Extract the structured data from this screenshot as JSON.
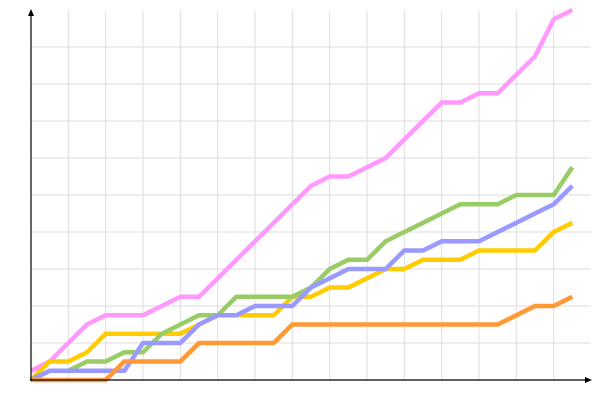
{
  "chart_data": {
    "type": "line",
    "title": "",
    "xlabel": "",
    "ylabel": "",
    "xlim": [
      0,
      15
    ],
    "ylim": [
      0,
      10
    ],
    "grid": true,
    "legend": "none",
    "x": [
      0,
      0.5,
      1,
      1.5,
      2,
      2.5,
      3,
      3.5,
      4,
      4.5,
      5,
      5.5,
      6,
      6.5,
      7,
      7.5,
      8,
      8.5,
      9,
      9.5,
      10,
      10.5,
      11,
      11.5,
      12,
      12.5,
      13,
      13.5,
      14,
      14.5
    ],
    "series": [
      {
        "color": "#ff99ff",
        "values": [
          0.25,
          0.5,
          1.0,
          1.5,
          1.75,
          1.75,
          1.75,
          2.0,
          2.25,
          2.25,
          2.75,
          3.25,
          3.75,
          4.25,
          4.75,
          5.25,
          5.5,
          5.5,
          5.75,
          6.0,
          6.5,
          7.0,
          7.5,
          7.5,
          7.75,
          7.75,
          8.25,
          8.75,
          9.75,
          10.0
        ]
      },
      {
        "color": "#ffcc00",
        "values": [
          0,
          0.5,
          0.5,
          0.75,
          1.25,
          1.25,
          1.25,
          1.25,
          1.25,
          1.5,
          1.75,
          1.75,
          1.75,
          1.75,
          2.25,
          2.25,
          2.5,
          2.5,
          2.75,
          3.0,
          3.0,
          3.25,
          3.25,
          3.25,
          3.5,
          3.5,
          3.5,
          3.5,
          4.0,
          4.25
        ]
      },
      {
        "color": "#99cc66",
        "values": [
          0,
          0.25,
          0.25,
          0.5,
          0.5,
          0.75,
          0.75,
          1.25,
          1.5,
          1.75,
          1.75,
          2.25,
          2.25,
          2.25,
          2.25,
          2.5,
          3.0,
          3.25,
          3.25,
          3.75,
          4.0,
          4.25,
          4.5,
          4.75,
          4.75,
          4.75,
          5.0,
          5.0,
          5.0,
          5.75
        ]
      },
      {
        "color": "#9999ff",
        "values": [
          0,
          0.25,
          0.25,
          0.25,
          0.25,
          0.25,
          1.0,
          1.0,
          1.0,
          1.5,
          1.75,
          1.75,
          2.0,
          2.0,
          2.0,
          2.5,
          2.75,
          3.0,
          3.0,
          3.0,
          3.5,
          3.5,
          3.75,
          3.75,
          3.75,
          4.0,
          4.25,
          4.5,
          4.75,
          5.25
        ]
      },
      {
        "color": "#ff9933",
        "values": [
          0,
          0,
          0,
          0,
          0,
          0.5,
          0.5,
          0.5,
          0.5,
          1.0,
          1.0,
          1.0,
          1.0,
          1.0,
          1.5,
          1.5,
          1.5,
          1.5,
          1.5,
          1.5,
          1.5,
          1.5,
          1.5,
          1.5,
          1.5,
          1.5,
          1.75,
          2.0,
          2.0,
          2.25
        ]
      }
    ]
  }
}
